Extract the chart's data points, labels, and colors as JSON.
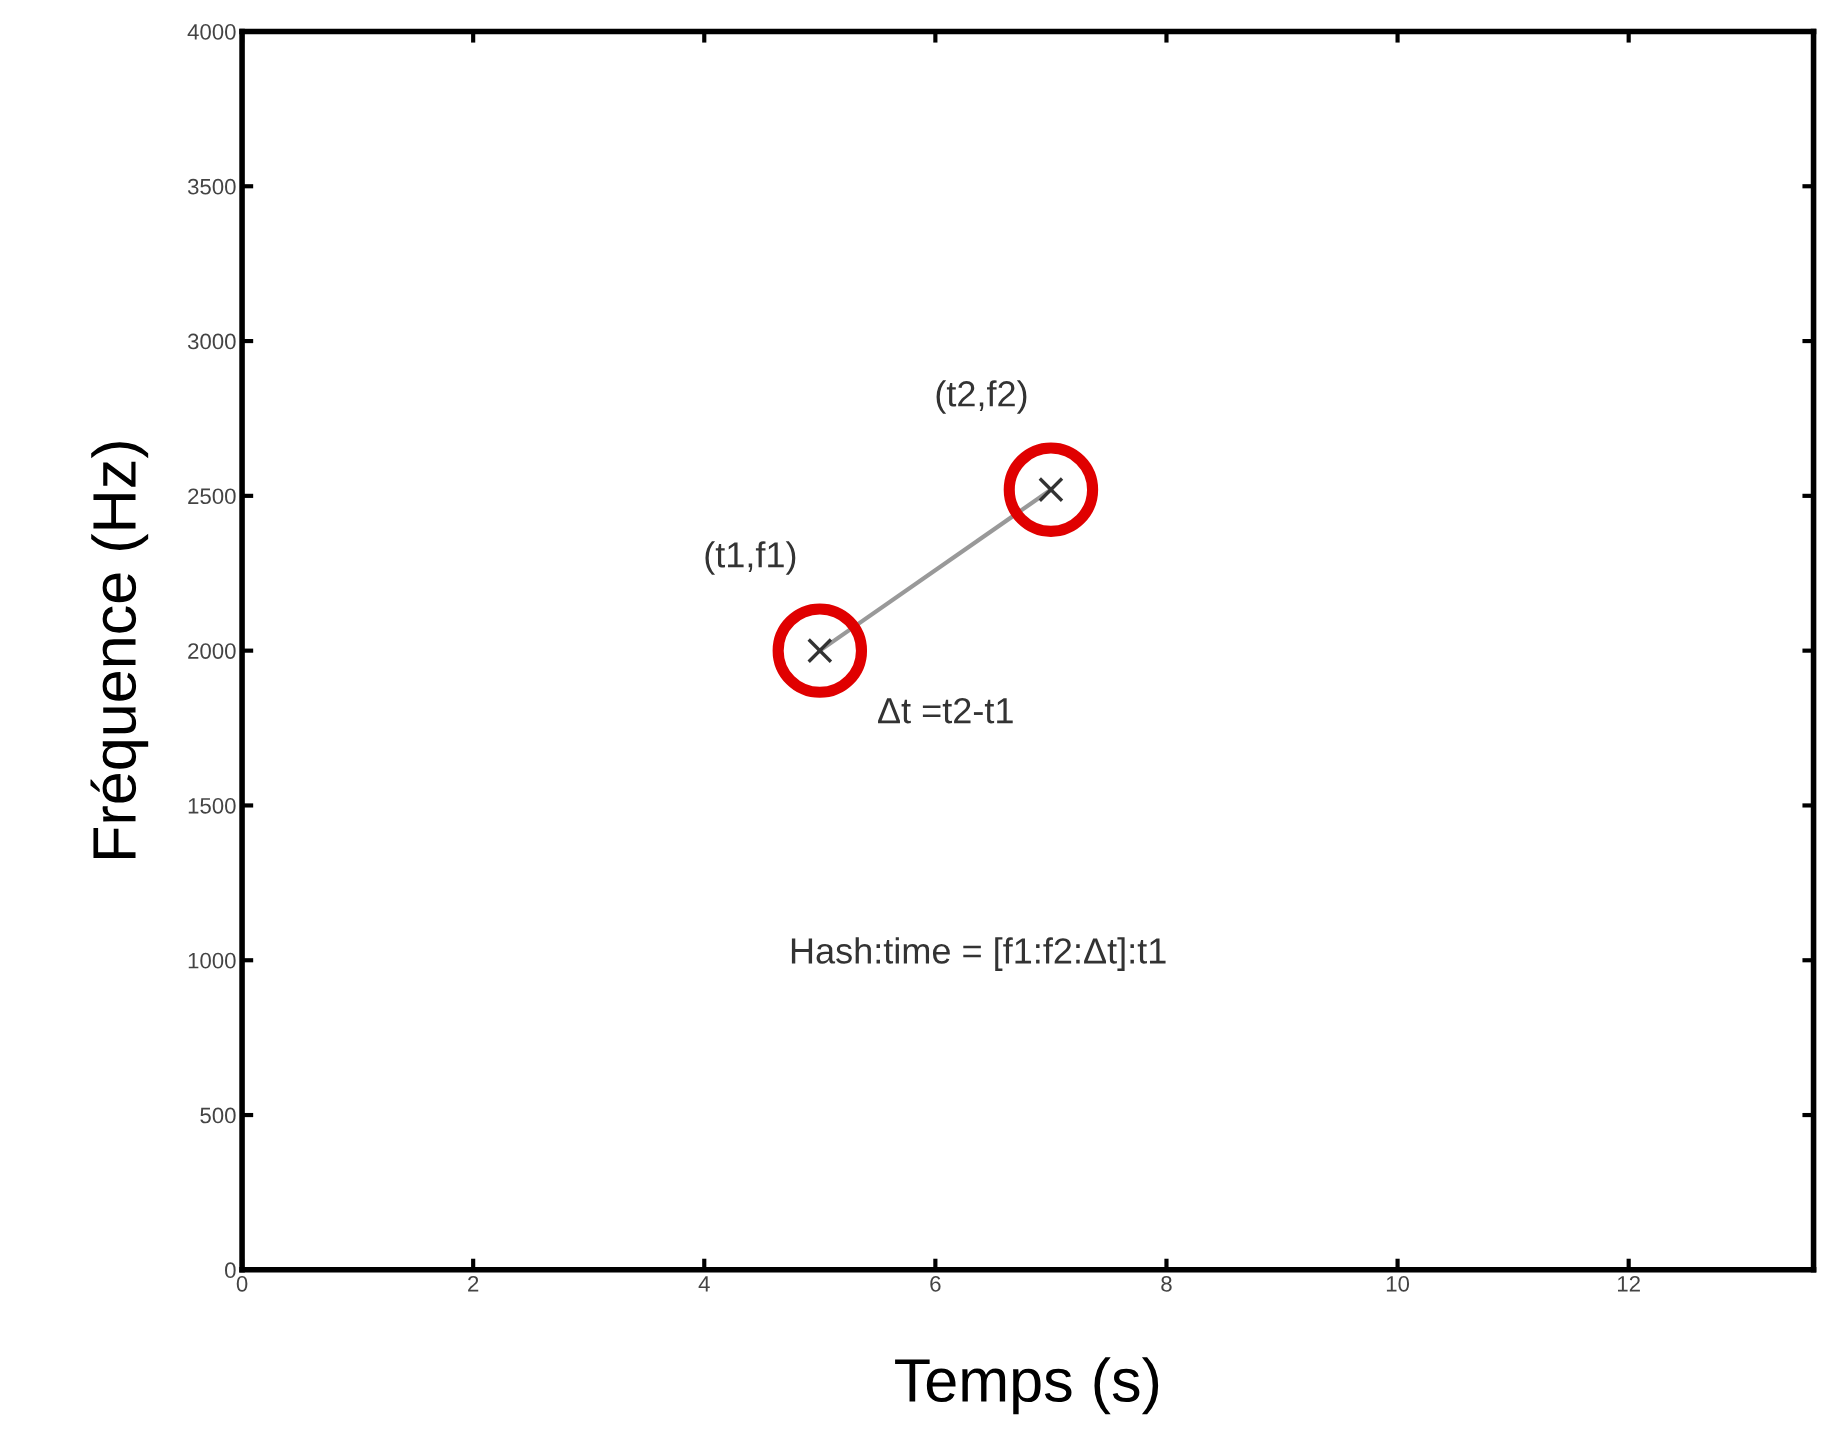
{
  "chart_data": {
    "type": "line",
    "xlabel": "Temps (s)",
    "ylabel": "Fréquence (Hz)",
    "x": [
      5,
      7
    ],
    "xlim": [
      0,
      13.6
    ],
    "xticks": [
      0,
      2,
      4,
      6,
      8,
      10,
      12
    ],
    "ylim": [
      0,
      4000
    ],
    "yticks": [
      0,
      500,
      1000,
      1500,
      2000,
      2500,
      3000,
      3500,
      4000
    ],
    "series": [
      {
        "color": "#999999",
        "values": [
          2000,
          2520
        ],
        "marker": "cross"
      },
      {
        "type": "scatter",
        "color": "#e00000",
        "values": [
          2000,
          2520
        ],
        "marker": "circle"
      }
    ],
    "annotations": [
      {
        "text": "(t1,f1)",
        "x": 5,
        "y": 2000
      },
      {
        "text": "(t2,f2)",
        "x": 7,
        "y": 2520
      },
      "Δt =t2-t1",
      "Hash:time = [f1:f2:Δt]:t1"
    ],
    "grid": false,
    "legend": false
  }
}
